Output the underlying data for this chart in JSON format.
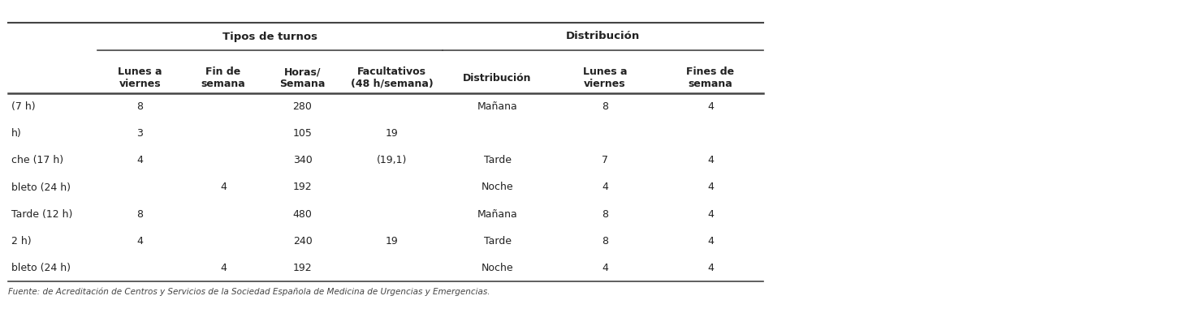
{
  "footer": "Fuente: de Acreditación de Centros y Servicios de la Sociedad Española de Medicina de Urgencias y Emergencias.",
  "group1_header": "Tipos de turnos",
  "group2_header": "Distribución",
  "rows": [
    [
      "(7 h)",
      "8",
      "",
      "280",
      "",
      "Mañana",
      "8",
      "4"
    ],
    [
      "h)",
      "3",
      "",
      "105",
      "19",
      "",
      "",
      ""
    ],
    [
      "che (17 h)",
      "4",
      "",
      "340",
      "(19,1)",
      "Tarde",
      "7",
      "4"
    ],
    [
      "bleto (24 h)",
      "",
      "4",
      "192",
      "",
      "Noche",
      "4",
      "4"
    ],
    [
      "Tarde (12 h)",
      "8",
      "",
      "480",
      "",
      "Mañana",
      "8",
      "4"
    ],
    [
      "2 h)",
      "4",
      "",
      "240",
      "19",
      "Tarde",
      "8",
      "4"
    ],
    [
      "bleto (24 h)",
      "",
      "4",
      "192",
      "",
      "Noche",
      "4",
      "4"
    ]
  ],
  "col_headers": [
    "",
    "Lunes a\nviernes",
    "Fin de\nsemana",
    "Horas/\nSemana",
    "Facultativos\n(48 h/semana)",
    "Distribución",
    "Lunes a\nviernes",
    "Fines de\nsemana"
  ],
  "background_color": "#ffffff",
  "text_color": "#222222",
  "line_color": "#444444"
}
